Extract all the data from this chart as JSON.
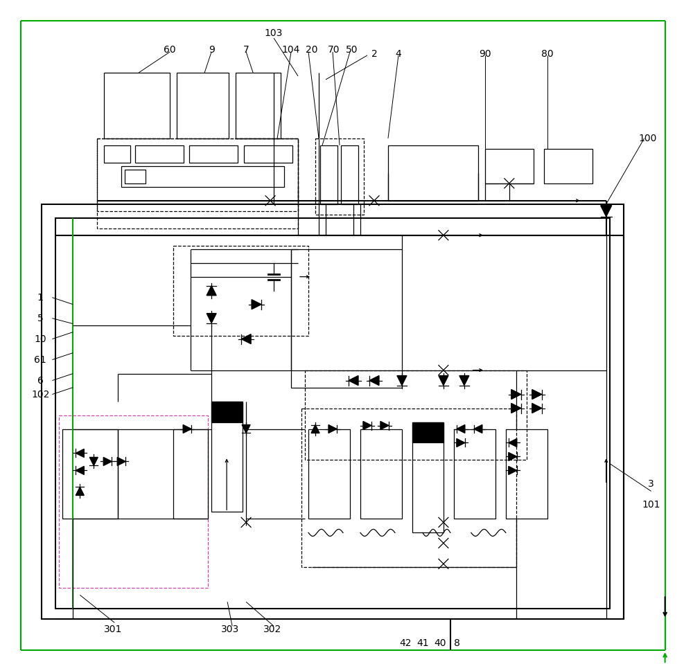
{
  "bg": "#ffffff",
  "lc": "#000000",
  "gc": "#00aa00",
  "pk": "#cc44aa",
  "lw_main": 1.5,
  "lw_thin": 0.9,
  "lw_green": 1.5,
  "fig_w": 10.0,
  "fig_h": 9.59,
  "dpi": 100
}
